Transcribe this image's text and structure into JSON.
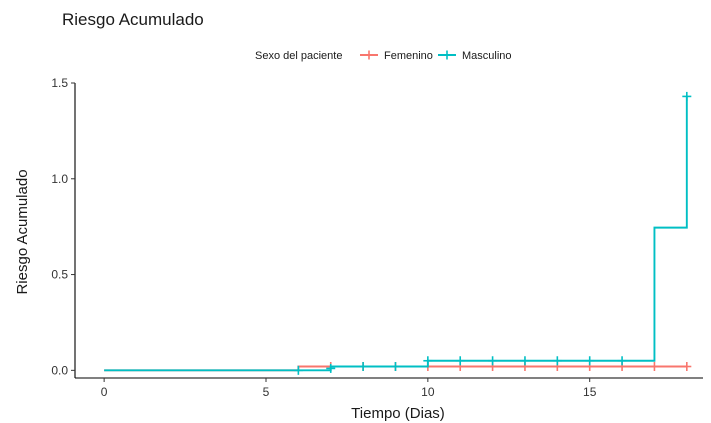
{
  "chart_data": {
    "type": "line",
    "title": "Riesgo Acumulado",
    "xlabel": "Tiempo (Dias)",
    "ylabel": "Riesgo Acumulado",
    "xlim": [
      -0.9,
      18.5
    ],
    "ylim": [
      -0.04,
      1.5
    ],
    "xticks": [
      0,
      5,
      10,
      15
    ],
    "yticks": [
      0.0,
      0.5,
      1.0,
      1.5
    ],
    "ytick_labels": [
      "0.0",
      "0.5",
      "1.0",
      "1.5"
    ],
    "grid": false,
    "legend": {
      "title": "Sexo del paciente",
      "position": "top"
    },
    "series": [
      {
        "name": "Femenino",
        "color": "#F8766D",
        "step": [
          [
            0,
            0
          ],
          [
            6,
            0.02
          ],
          [
            18,
            0.02
          ]
        ],
        "censor": [
          [
            7,
            0.02
          ],
          [
            8,
            0.02
          ],
          [
            9,
            0.02
          ],
          [
            10,
            0.02
          ],
          [
            11,
            0.02
          ],
          [
            12,
            0.02
          ],
          [
            13,
            0.02
          ],
          [
            14,
            0.02
          ],
          [
            15,
            0.02
          ],
          [
            16,
            0.02
          ],
          [
            17,
            0.02
          ],
          [
            18,
            0.02
          ]
        ]
      },
      {
        "name": "Masculino",
        "color": "#00BFC4",
        "step": [
          [
            0,
            0
          ],
          [
            6,
            0
          ],
          [
            7,
            0.02
          ],
          [
            10,
            0.05
          ],
          [
            17,
            0.745
          ],
          [
            18,
            1.43
          ]
        ],
        "censor": [
          [
            6,
            0
          ],
          [
            7,
            0.01
          ],
          [
            8,
            0.02
          ],
          [
            9,
            0.02
          ],
          [
            10,
            0.05
          ],
          [
            11,
            0.05
          ],
          [
            12,
            0.05
          ],
          [
            13,
            0.05
          ],
          [
            14,
            0.05
          ],
          [
            15,
            0.05
          ],
          [
            16,
            0.05
          ],
          [
            18,
            1.43
          ]
        ]
      }
    ]
  }
}
